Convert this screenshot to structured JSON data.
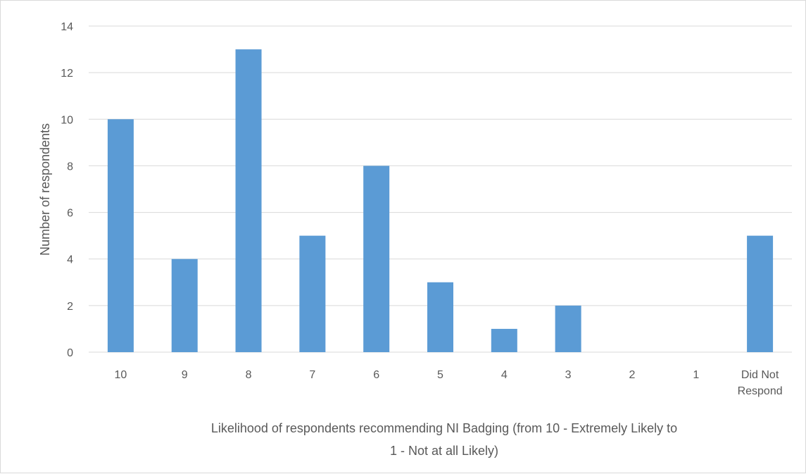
{
  "chart_data": {
    "type": "bar",
    "categories": [
      "10",
      "9",
      "8",
      "7",
      "6",
      "5",
      "4",
      "3",
      "2",
      "1",
      "Did Not Respond"
    ],
    "category_lines": [
      [
        "10"
      ],
      [
        "9"
      ],
      [
        "8"
      ],
      [
        "7"
      ],
      [
        "6"
      ],
      [
        "5"
      ],
      [
        "4"
      ],
      [
        "3"
      ],
      [
        "2"
      ],
      [
        "1"
      ],
      [
        "Did Not",
        "Respond"
      ]
    ],
    "values": [
      10,
      4,
      13,
      5,
      8,
      3,
      1,
      2,
      0,
      0,
      5
    ],
    "title": "",
    "xlabel": "Likelihood of respondents recommending NI Badging (from 10 - Extremely Likely to 1 - Not at all Likely)",
    "xlabel_lines": [
      "Likelihood of respondents recommending NI Badging (from 10 - Extremely Likely to",
      "1 - Not at all Likely)"
    ],
    "ylabel": "Number of respondents",
    "ylim": [
      0,
      14
    ],
    "yticks": [
      0,
      2,
      4,
      6,
      8,
      10,
      12,
      14
    ],
    "grid": true,
    "legend": "none",
    "colors": {
      "bar": "#5b9bd5",
      "grid": "#d9d9d9",
      "text": "#595959"
    }
  }
}
